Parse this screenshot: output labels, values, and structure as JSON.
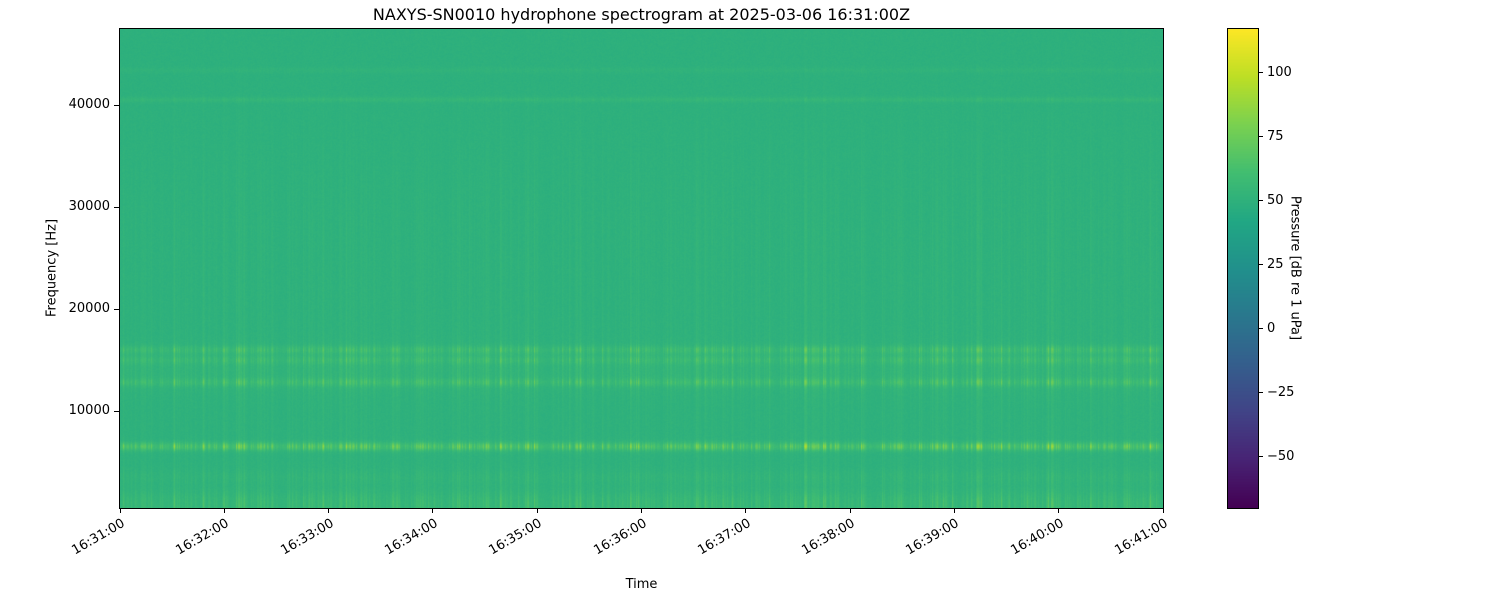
{
  "chart_data": {
    "type": "heatmap",
    "subtype": "spectrogram",
    "title": "NAXYS-SN0010 hydrophone spectrogram at 2025-03-06 16:31:00Z",
    "xlabel": "Time",
    "ylabel": "Frequency [Hz]",
    "x_ticks": [
      "16:31:00",
      "16:32:00",
      "16:33:00",
      "16:34:00",
      "16:35:00",
      "16:36:00",
      "16:37:00",
      "16:38:00",
      "16:39:00",
      "16:40:00",
      "16:41:00"
    ],
    "y_ticks": {
      "values": [
        10000,
        20000,
        30000,
        40000
      ],
      "labels": [
        "10000",
        "20000",
        "30000",
        "40000"
      ]
    },
    "y_range": [
      500,
      47500
    ],
    "colormap": "viridis",
    "background_db": 49,
    "strong_band_hz": [
      6500,
      12800,
      15000,
      16000
    ],
    "strong_band_amp_db": [
      26,
      12,
      9,
      12
    ],
    "broad_band_hz": 14000,
    "low_freq_glow_hz": 900,
    "faint_lines_hz": [
      40600,
      43500
    ],
    "vertical_streaks": "dense broadband transient vertical streaks across entire time range, strongest below 30 kHz",
    "colorbar": {
      "label": "Pressure [dB re 1 uPa]",
      "ticks": {
        "values": [
          100,
          75,
          50,
          25,
          0,
          -25,
          -50
        ],
        "labels": [
          "100",
          "75",
          "50",
          "25",
          "0",
          "−25",
          "−50"
        ]
      },
      "vmin": -70,
      "vmax": 117
    }
  }
}
